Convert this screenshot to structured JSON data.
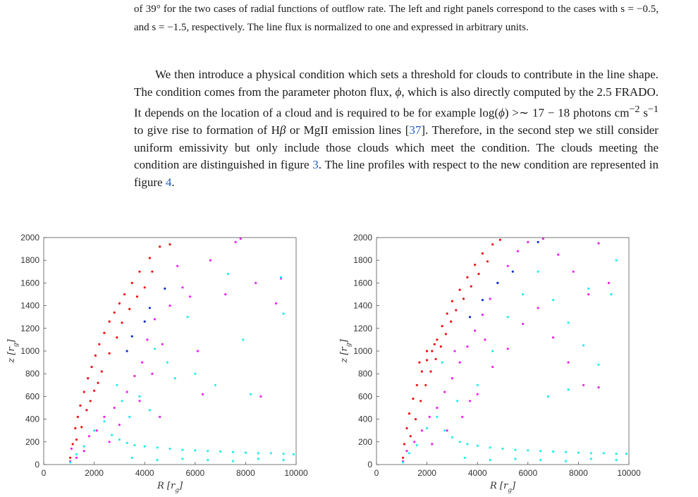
{
  "caption": {
    "text": "of 39° for the two cases of radial functions of outflow rate. The left and right panels correspond to the cases with s = −0.5, and s = −1.5, respectively. The line flux is normalized to one and expressed in arbitrary units."
  },
  "paragraph": {
    "part1": "We then introduce a physical condition which sets a threshold for clouds to contribute in the line shape. The condition comes from the parameter photon flux, ",
    "phi": "ϕ",
    "part2": ", which is also directly computed by the 2.5 FRADO. It depends on the location of a cloud and is required to be for example log(",
    "phi2": "ϕ",
    "part3": ") >∼ 17 − 18 photons cm",
    "sup1": "−2",
    "part4": " s",
    "sup2": "−1",
    "part5": " to give rise to formation of H",
    "beta": "β",
    "part6": " or MgII emission lines [",
    "ref1": "37",
    "part7": "]. Therefore, in the second step we still consider uniform emissivity but only include those clouds which meet the condition. The clouds meeting the condition are distinguished in figure ",
    "ref2": "3",
    "part8": ". The line profiles with respect to the new condition are represented in figure ",
    "ref3": "4",
    "part9": "."
  },
  "colors": {
    "red": "#ee1111",
    "magenta": "#ee22ee",
    "cyan": "#22eeee",
    "blue": "#1133cc",
    "axis": "#555555"
  },
  "chart_data": [
    {
      "type": "scatter",
      "panel": "left",
      "xlabel": "R [r_g]",
      "ylabel": "z [r_g]",
      "xlim": [
        0,
        10000
      ],
      "ylim": [
        0,
        2000
      ],
      "xticks": [
        "0",
        "2000",
        "4000",
        "6000",
        "8000",
        "10000"
      ],
      "yticks": [
        "0",
        "200",
        "400",
        "600",
        "800",
        "1000",
        "1200",
        "1400",
        "1600",
        "1800",
        "2000"
      ],
      "grid": false,
      "legend": "none",
      "series": [
        {
          "color": "#ee1111",
          "points": [
            [
              1050,
              60
            ],
            [
              1150,
              180
            ],
            [
              1250,
              320
            ],
            [
              1350,
              420
            ],
            [
              1450,
              520
            ],
            [
              1600,
              640
            ],
            [
              1750,
              760
            ],
            [
              1900,
              860
            ],
            [
              2050,
              960
            ],
            [
              2200,
              1060
            ],
            [
              2400,
              1160
            ],
            [
              2600,
              1260
            ],
            [
              2800,
              1340
            ],
            [
              3000,
              1420
            ],
            [
              3200,
              1500
            ],
            [
              3500,
              1600
            ],
            [
              3800,
              1700
            ],
            [
              4200,
              1820
            ],
            [
              4600,
              1920
            ],
            [
              5000,
              1940
            ],
            [
              1300,
              220
            ],
            [
              1500,
              330
            ],
            [
              1700,
              480
            ],
            [
              2000,
              650
            ],
            [
              2300,
              820
            ],
            [
              2600,
              980
            ],
            [
              2900,
              1120
            ],
            [
              3100,
              1250
            ],
            [
              3400,
              1370
            ],
            [
              3700,
              1480
            ],
            [
              4000,
              1560
            ],
            [
              4300,
              1700
            ],
            [
              2150,
              720
            ],
            [
              1850,
              560
            ]
          ]
        },
        {
          "color": "#ee22ee",
          "points": [
            [
              1050,
              30
            ],
            [
              1100,
              140
            ],
            [
              1300,
              60
            ],
            [
              1600,
              120
            ],
            [
              1800,
              250
            ],
            [
              2100,
              300
            ],
            [
              2400,
              420
            ],
            [
              2600,
              200
            ],
            [
              2800,
              500
            ],
            [
              3000,
              350
            ],
            [
              3300,
              640
            ],
            [
              3600,
              780
            ],
            [
              3900,
              900
            ],
            [
              4100,
              1100
            ],
            [
              4400,
              1280
            ],
            [
              4700,
              1060
            ],
            [
              5000,
              1400
            ],
            [
              5300,
              1750
            ],
            [
              5500,
              1560
            ],
            [
              5800,
              1480
            ],
            [
              6100,
              1000
            ],
            [
              6300,
              620
            ],
            [
              6600,
              1800
            ],
            [
              7200,
              1500
            ],
            [
              7600,
              1960
            ],
            [
              7800,
              1990
            ],
            [
              8400,
              1600
            ],
            [
              8600,
              600
            ],
            [
              9200,
              1420
            ],
            [
              9400,
              1640
            ],
            [
              3800,
              560
            ],
            [
              4300,
              800
            ],
            [
              4600,
              420
            ]
          ]
        },
        {
          "color": "#22eeee",
          "points": [
            [
              1050,
              20
            ],
            [
              1300,
              90
            ],
            [
              1600,
              160
            ],
            [
              2000,
              300
            ],
            [
              2400,
              380
            ],
            [
              2700,
              260
            ],
            [
              3000,
              220
            ],
            [
              3300,
              190
            ],
            [
              3600,
              170
            ],
            [
              4000,
              160
            ],
            [
              4500,
              150
            ],
            [
              5000,
              140
            ],
            [
              5500,
              130
            ],
            [
              6000,
              125
            ],
            [
              6500,
              120
            ],
            [
              7000,
              115
            ],
            [
              7500,
              110
            ],
            [
              8000,
              105
            ],
            [
              8500,
              100
            ],
            [
              9000,
              100
            ],
            [
              9500,
              95
            ],
            [
              9900,
              90
            ],
            [
              3500,
              60
            ],
            [
              4500,
              40
            ],
            [
              5500,
              50
            ],
            [
              6500,
              40
            ],
            [
              7500,
              30
            ],
            [
              8500,
              50
            ],
            [
              9500,
              40
            ],
            [
              3800,
              600
            ],
            [
              4200,
              480
            ],
            [
              4900,
              900
            ],
            [
              5200,
              760
            ],
            [
              5700,
              1300
            ],
            [
              6000,
              800
            ],
            [
              6800,
              700
            ],
            [
              7300,
              1680
            ],
            [
              7900,
              1100
            ],
            [
              8200,
              620
            ],
            [
              9400,
              1650
            ],
            [
              9500,
              1330
            ],
            [
              2900,
              700
            ],
            [
              3100,
              560
            ],
            [
              3400,
              420
            ],
            [
              4400,
              1020
            ]
          ]
        },
        {
          "color": "#1133cc",
          "points": [
            [
              3300,
              1000
            ],
            [
              3500,
              1130
            ],
            [
              4000,
              1260
            ],
            [
              4200,
              1380
            ],
            [
              4800,
              1550
            ]
          ]
        }
      ]
    },
    {
      "type": "scatter",
      "panel": "right",
      "xlabel": "R [r_g]",
      "ylabel": "z [r_g]",
      "xlim": [
        0,
        10000
      ],
      "ylim": [
        0,
        2000
      ],
      "xticks": [
        "0",
        "2000",
        "4000",
        "6000",
        "8000",
        "10000"
      ],
      "yticks": [
        "0",
        "200",
        "400",
        "600",
        "800",
        "1000",
        "1200",
        "1400",
        "1600",
        "1800",
        "2000"
      ],
      "grid": false,
      "legend": "none",
      "series": [
        {
          "color": "#ee1111",
          "points": [
            [
              1050,
              60
            ],
            [
              1100,
              180
            ],
            [
              1200,
              320
            ],
            [
              1300,
              450
            ],
            [
              1450,
              580
            ],
            [
              1600,
              700
            ],
            [
              1800,
              820
            ],
            [
              2000,
              920
            ],
            [
              2200,
              1000
            ],
            [
              2400,
              1100
            ],
            [
              2600,
              1220
            ],
            [
              2800,
              1330
            ],
            [
              3000,
              1440
            ],
            [
              3300,
              1540
            ],
            [
              3600,
              1650
            ],
            [
              3900,
              1760
            ],
            [
              4200,
              1860
            ],
            [
              4600,
              1940
            ],
            [
              4900,
              1980
            ],
            [
              1350,
              250
            ],
            [
              1550,
              400
            ],
            [
              1750,
              560
            ],
            [
              1950,
              700
            ],
            [
              2150,
              820
            ],
            [
              2350,
              930
            ],
            [
              2550,
              1040
            ],
            [
              2750,
              1150
            ],
            [
              2950,
              1260
            ],
            [
              3150,
              1360
            ],
            [
              3450,
              1460
            ],
            [
              3750,
              1570
            ],
            [
              4050,
              1680
            ],
            [
              4400,
              1790
            ],
            [
              1700,
              900
            ],
            [
              2000,
              1000
            ],
            [
              2300,
              1060
            ]
          ]
        },
        {
          "color": "#ee22ee",
          "points": [
            [
              1050,
              30
            ],
            [
              1200,
              120
            ],
            [
              1500,
              200
            ],
            [
              1800,
              300
            ],
            [
              2100,
              420
            ],
            [
              2400,
              500
            ],
            [
              2700,
              640
            ],
            [
              3000,
              760
            ],
            [
              3300,
              900
            ],
            [
              3600,
              1040
            ],
            [
              3900,
              1180
            ],
            [
              4200,
              1320
            ],
            [
              4500,
              1460
            ],
            [
              4800,
              1600
            ],
            [
              5200,
              1750
            ],
            [
              5600,
              1880
            ],
            [
              6000,
              1960
            ],
            [
              6600,
              1990
            ],
            [
              7200,
              1850
            ],
            [
              7800,
              1700
            ],
            [
              8400,
              1500
            ],
            [
              8800,
              1950
            ],
            [
              9200,
              1600
            ],
            [
              2200,
              180
            ],
            [
              2800,
              300
            ],
            [
              3400,
              420
            ],
            [
              4000,
              620
            ],
            [
              4600,
              860
            ],
            [
              5200,
              1020
            ],
            [
              5800,
              1240
            ],
            [
              6400,
              1380
            ],
            [
              7000,
              1120
            ],
            [
              7600,
              900
            ],
            [
              8200,
              700
            ],
            [
              8800,
              680
            ],
            [
              3100,
              1000
            ],
            [
              3700,
              560
            ],
            [
              4300,
              1100
            ]
          ]
        },
        {
          "color": "#22eeee",
          "points": [
            [
              1050,
              20
            ],
            [
              1300,
              100
            ],
            [
              1600,
              170
            ],
            [
              2000,
              320
            ],
            [
              2400,
              420
            ],
            [
              2700,
              300
            ],
            [
              3000,
              240
            ],
            [
              3300,
              200
            ],
            [
              3600,
              180
            ],
            [
              4000,
              165
            ],
            [
              4500,
              150
            ],
            [
              5000,
              140
            ],
            [
              5500,
              130
            ],
            [
              6000,
              125
            ],
            [
              6500,
              120
            ],
            [
              7000,
              115
            ],
            [
              7500,
              110
            ],
            [
              8000,
              105
            ],
            [
              8500,
              100
            ],
            [
              9000,
              100
            ],
            [
              9500,
              95
            ],
            [
              9900,
              95
            ],
            [
              3500,
              60
            ],
            [
              4500,
              40
            ],
            [
              5500,
              50
            ],
            [
              6500,
              40
            ],
            [
              7500,
              30
            ],
            [
              8500,
              50
            ],
            [
              9500,
              40
            ],
            [
              4000,
              700
            ],
            [
              4600,
              1000
            ],
            [
              5200,
              1300
            ],
            [
              5800,
              1500
            ],
            [
              6400,
              1700
            ],
            [
              7000,
              1450
            ],
            [
              7600,
              1250
            ],
            [
              8200,
              1050
            ],
            [
              8800,
              880
            ],
            [
              9300,
              1500
            ],
            [
              9500,
              1800
            ],
            [
              6800,
              600
            ],
            [
              7600,
              660
            ],
            [
              2600,
              900
            ],
            [
              3200,
              560
            ],
            [
              8400,
              1550
            ]
          ]
        },
        {
          "color": "#1133cc",
          "points": [
            [
              3700,
              1300
            ],
            [
              4200,
              1450
            ],
            [
              4800,
              1600
            ],
            [
              5400,
              1700
            ],
            [
              6400,
              1960
            ]
          ]
        }
      ]
    }
  ]
}
